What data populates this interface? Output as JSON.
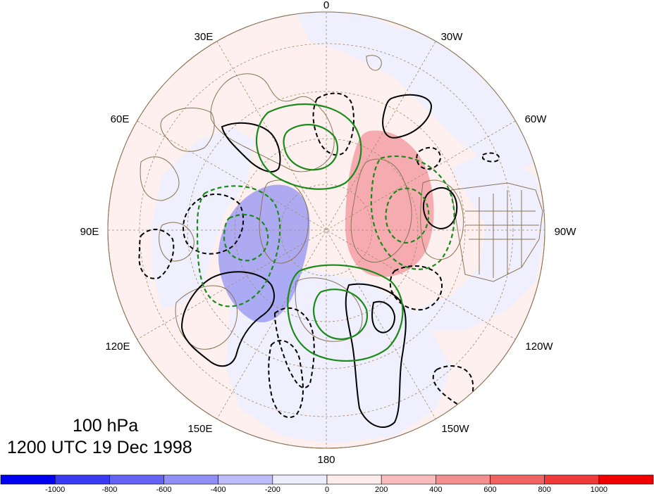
{
  "map": {
    "projection": "north polar stereographic",
    "longitude_labels": {
      "top": "0",
      "upper_left_1": "30E",
      "upper_right_1": "30W",
      "upper_left_2": "60E",
      "upper_right_2": "60W",
      "left": "90E",
      "right": "90W",
      "lower_left_2": "120E",
      "lower_right_2": "120W",
      "lower_left_1": "150E",
      "lower_right_1": "150W",
      "bottom": "180"
    },
    "contour_styles": {
      "positive_black": "solid",
      "negative_black": "dashed",
      "positive_green": "solid",
      "negative_green": "dashed"
    },
    "colors": {
      "black_contours": "#000000",
      "green_contours": "#1a8a1a",
      "coastlines": "#8b7355",
      "graticule": "#a08a6a",
      "positive_shading": "#f5a3a8",
      "negative_shading": "#8c8cf2"
    }
  },
  "title": {
    "level": "100 hPa",
    "time": "1200 UTC 19 Dec 1998"
  },
  "colorbar": {
    "labels": [
      "-1000",
      "-800",
      "-600",
      "-400",
      "-200",
      "0",
      "200",
      "400",
      "600",
      "800",
      "1000"
    ],
    "colors": [
      "#0000f0",
      "#3a3af2",
      "#6363f4",
      "#8f8ff6",
      "#bcbcf8",
      "#ececfd",
      "#fdeceb",
      "#f8bcbc",
      "#f48f8f",
      "#f06363",
      "#ef3a3a",
      "#f00000"
    ]
  }
}
